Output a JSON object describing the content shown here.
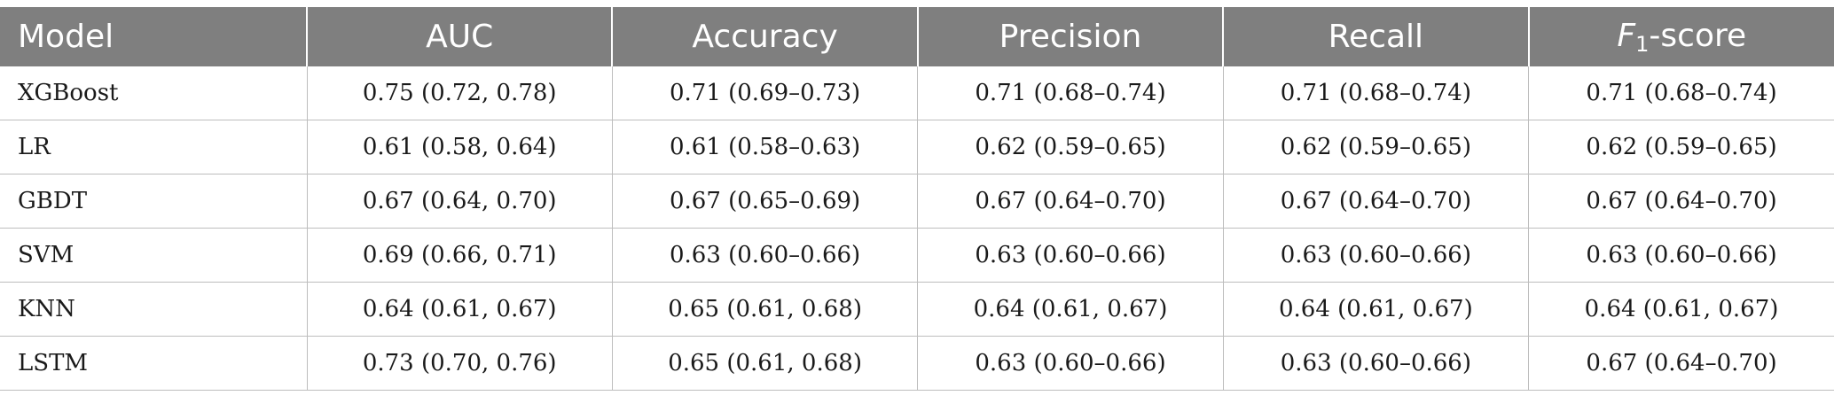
{
  "table": {
    "headers": {
      "model": "Model",
      "auc": "AUC",
      "accuracy": "Accuracy",
      "precision": "Precision",
      "recall": "Recall",
      "f1_letter": "F",
      "f1_sub": "1",
      "f1_rest": "-score"
    },
    "rows": [
      {
        "model": "XGBoost",
        "auc": "0.75 (0.72, 0.78)",
        "accuracy": "0.71 (0.69–0.73)",
        "precision": "0.71 (0.68–0.74)",
        "recall": "0.71 (0.68–0.74)",
        "f1": "0.71 (0.68–0.74)"
      },
      {
        "model": "LR",
        "auc": "0.61 (0.58, 0.64)",
        "accuracy": "0.61 (0.58–0.63)",
        "precision": "0.62 (0.59–0.65)",
        "recall": "0.62 (0.59–0.65)",
        "f1": "0.62 (0.59–0.65)"
      },
      {
        "model": "GBDT",
        "auc": "0.67 (0.64, 0.70)",
        "accuracy": "0.67 (0.65–0.69)",
        "precision": "0.67 (0.64–0.70)",
        "recall": "0.67 (0.64–0.70)",
        "f1": "0.67 (0.64–0.70)"
      },
      {
        "model": "SVM",
        "auc": "0.69 (0.66, 0.71)",
        "accuracy": "0.63 (0.60–0.66)",
        "precision": "0.63 (0.60–0.66)",
        "recall": "0.63 (0.60–0.66)",
        "f1": "0.63 (0.60–0.66)"
      },
      {
        "model": "KNN",
        "auc": "0.64 (0.61, 0.67)",
        "accuracy": "0.65 (0.61, 0.68)",
        "precision": "0.64 (0.61, 0.67)",
        "recall": "0.64 (0.61, 0.67)",
        "f1": "0.64 (0.61, 0.67)"
      },
      {
        "model": "LSTM",
        "auc": "0.73 (0.70, 0.76)",
        "accuracy": "0.65 (0.61, 0.68)",
        "precision": "0.63 (0.60–0.66)",
        "recall": "0.63 (0.60–0.66)",
        "f1": "0.67 (0.64–0.70)"
      }
    ]
  }
}
